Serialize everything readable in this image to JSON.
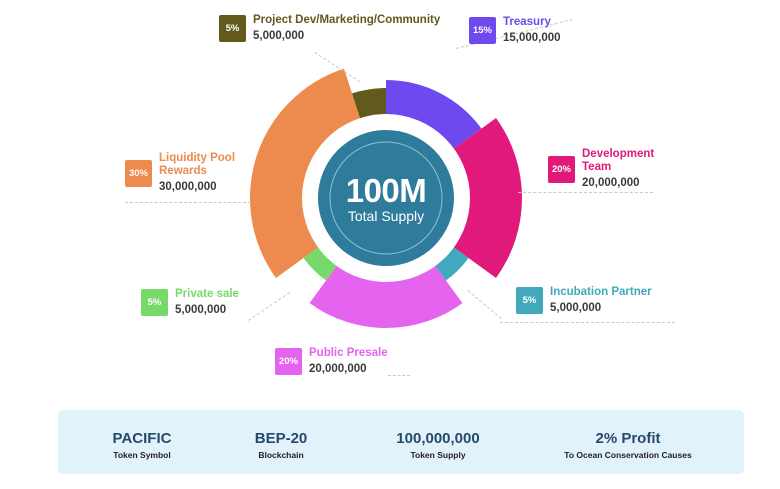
{
  "chart_data": {
    "type": "pie",
    "title": "",
    "center": {
      "value": "100M",
      "label": "Total Supply"
    },
    "slices": [
      {
        "label": "Treasury",
        "percent": 15,
        "percent_label": "15%",
        "amount": "15,000,000",
        "color": "#6e49ef"
      },
      {
        "label": "Development\nTeam",
        "percent": 20,
        "percent_label": "20%",
        "amount": "20,000,000",
        "color": "#e0197b"
      },
      {
        "label": "Incubation Partner",
        "percent": 5,
        "percent_label": "5%",
        "amount": "5,000,000",
        "color": "#41a9bb"
      },
      {
        "label": "Public Presale",
        "percent": 20,
        "percent_label": "20%",
        "amount": "20,000,000",
        "color": "#e463ef"
      },
      {
        "label": "Private sale",
        "percent": 5,
        "percent_label": "5%",
        "amount": "5,000,000",
        "color": "#78d96b"
      },
      {
        "label": "Liquidity Pool\nRewards",
        "percent": 30,
        "percent_label": "30%",
        "amount": "30,000,000",
        "color": "#ed8a4e"
      },
      {
        "label": "Project Dev/Marketing/Community",
        "percent": 5,
        "percent_label": "5%",
        "amount": "5,000,000",
        "color": "#615a1c"
      }
    ]
  },
  "info_bar": [
    {
      "value": "PACIFIC",
      "label": "Token Symbol"
    },
    {
      "value": "BEP-20",
      "label": "Blockchain"
    },
    {
      "value": "100,000,000",
      "label": "Token Supply"
    },
    {
      "value": "2% Profit",
      "label": "To Ocean Conservation Causes"
    }
  ]
}
